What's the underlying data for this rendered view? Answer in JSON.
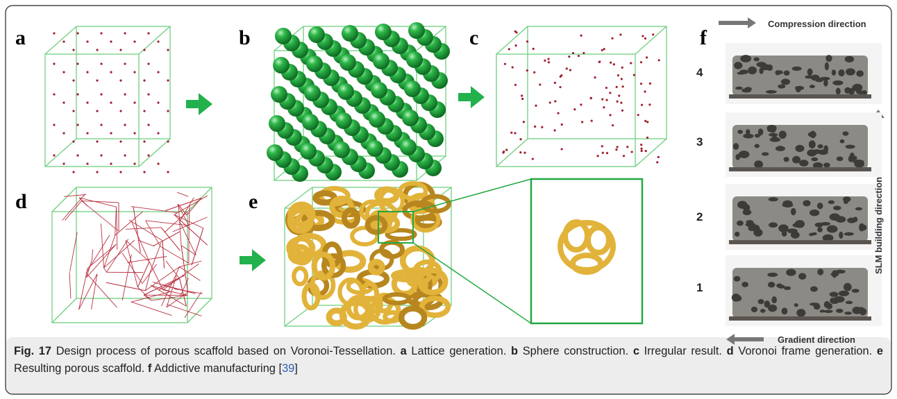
{
  "panels": [
    {
      "label": "a"
    },
    {
      "label": "b"
    },
    {
      "label": "c"
    },
    {
      "label": "d"
    },
    {
      "label": "e"
    }
  ],
  "panel_f": {
    "label": "f",
    "compression": "Compression direction",
    "building": "SLM building direction",
    "gradient": "Gradient direction",
    "samples": [
      "4",
      "3",
      "2",
      "1"
    ]
  },
  "caption": {
    "figure": "Fig. 17",
    "text": "Design process of porous scaffold based on Voronoi-Tessellation.",
    "items": [
      {
        "label": "a",
        "text": "Lattice generation."
      },
      {
        "label": "b",
        "text": "Sphere construction."
      },
      {
        "label": "c",
        "text": "Irregular result."
      },
      {
        "label": "d",
        "text": "Voronoi frame generation."
      },
      {
        "label": "e",
        "text": "Resulting porous scaffold."
      },
      {
        "label": "f",
        "text": "Addictive manufacturing"
      }
    ],
    "ref": {
      "open": "[",
      "number": "39",
      "close": "]"
    }
  }
}
